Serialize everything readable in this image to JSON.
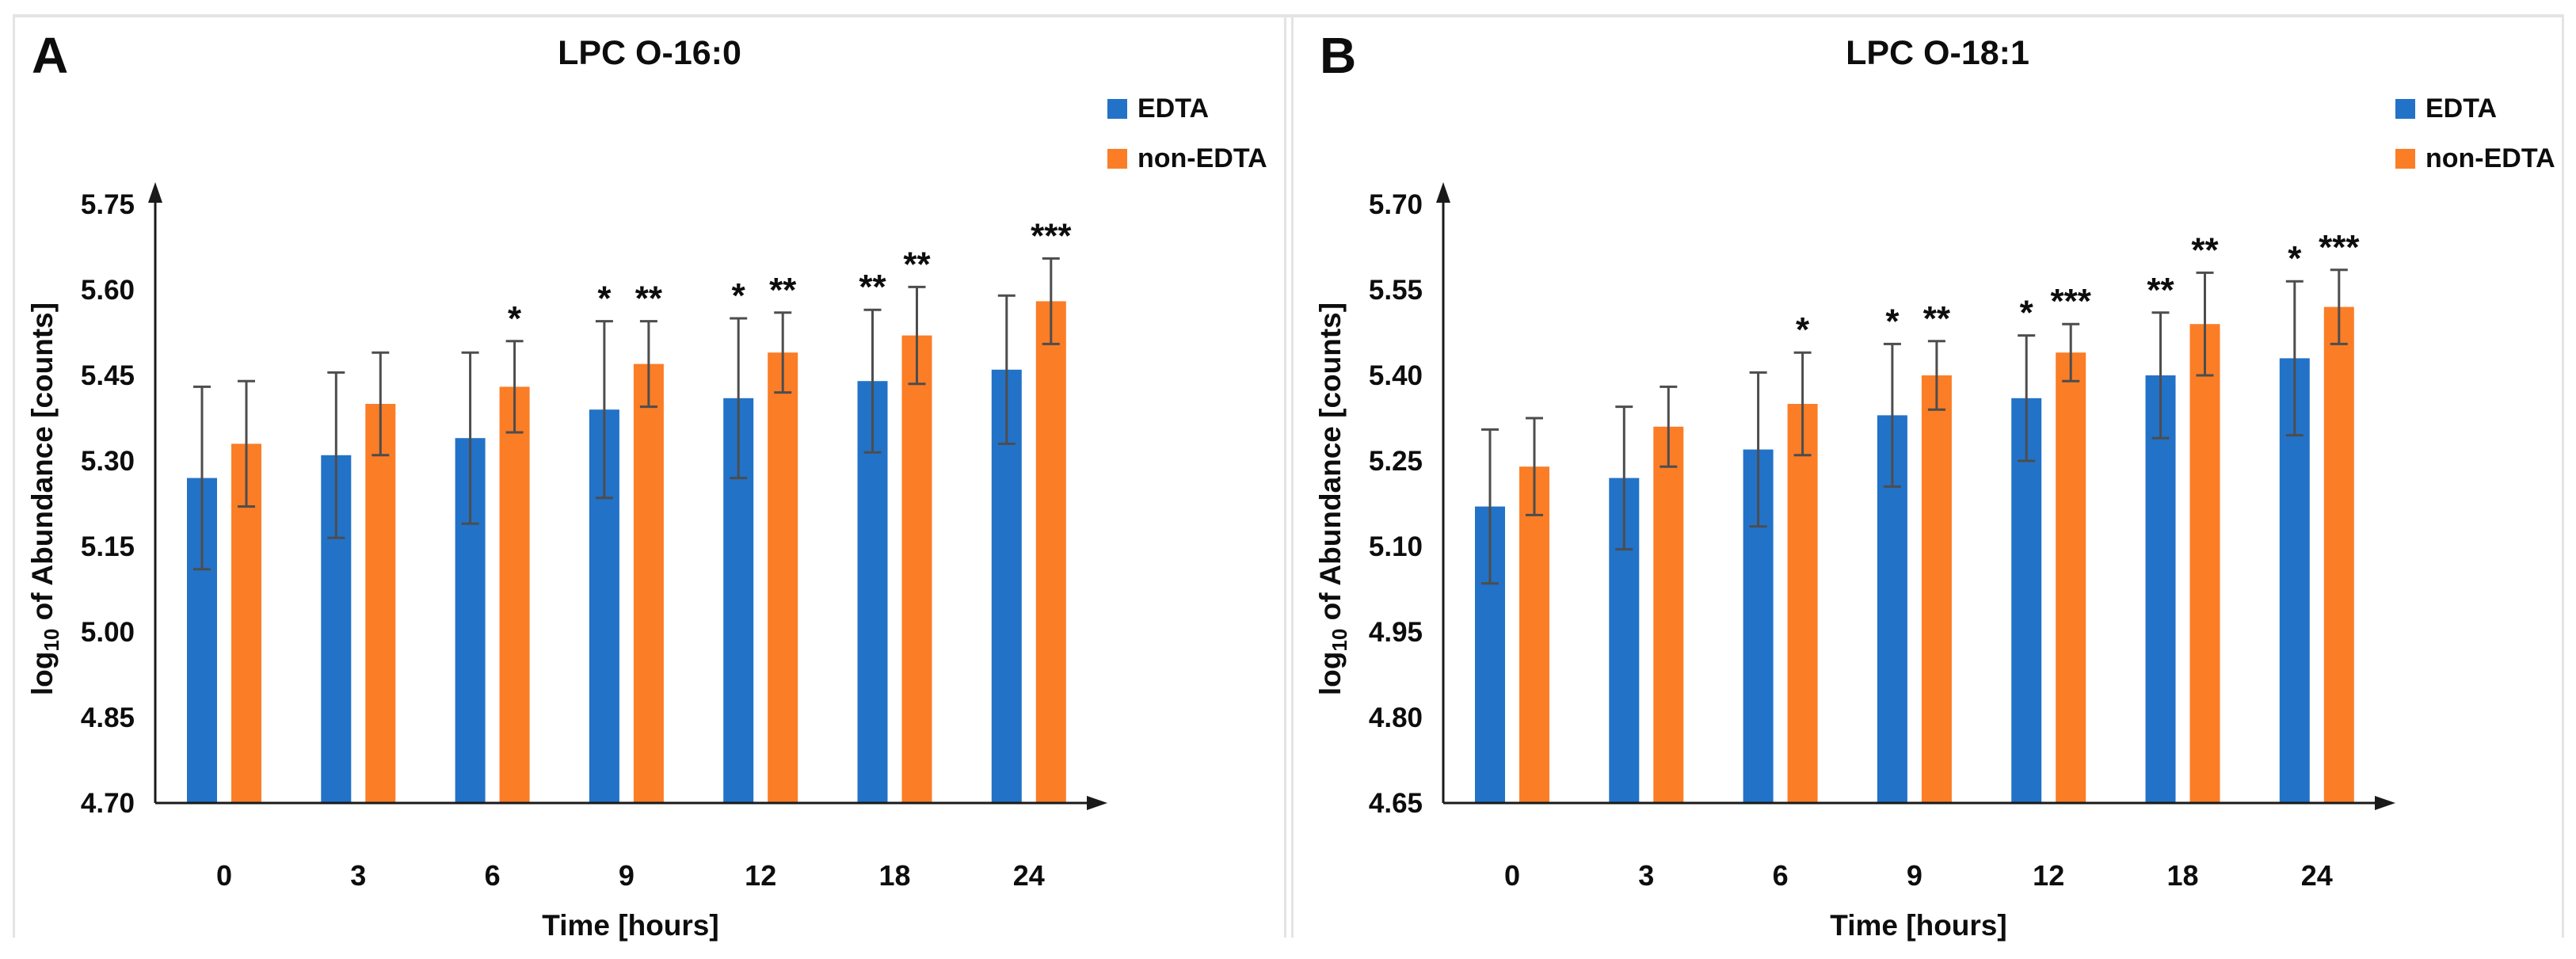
{
  "figure": {
    "background": "#ffffff",
    "frame_color": "#e4e4e4",
    "accent_blue": "#2272C8",
    "accent_orange": "#FB7D26"
  },
  "chart_data": [
    {
      "type": "bar",
      "panel_label": "A",
      "title": "LPC O-16:0",
      "xlabel": "Time [hours]",
      "ylabel": "log10 of Abundance [counts]",
      "ylabel_parts": {
        "pre": "log",
        "sub": "10",
        "post": " of Abundance [counts]"
      },
      "categories": [
        "0",
        "3",
        "6",
        "9",
        "12",
        "18",
        "24"
      ],
      "ylim": [
        4.7,
        5.75
      ],
      "yticks": [
        "4.70",
        "4.85",
        "5.00",
        "5.15",
        "5.30",
        "5.45",
        "5.60",
        "5.75"
      ],
      "grid": false,
      "legend": [
        "EDTA",
        "non-EDTA"
      ],
      "legend_position": "top-right",
      "error_bars": true,
      "series": [
        {
          "name": "EDTA",
          "color": "#2272C8",
          "values": [
            5.27,
            5.31,
            5.34,
            5.39,
            5.41,
            5.44,
            5.46
          ],
          "errors": [
            0.16,
            0.145,
            0.15,
            0.155,
            0.14,
            0.125,
            0.13
          ],
          "significance": [
            "",
            "",
            "",
            "*",
            "*",
            "**",
            ""
          ]
        },
        {
          "name": "non-EDTA",
          "color": "#FB7D26",
          "values": [
            5.33,
            5.4,
            5.43,
            5.47,
            5.49,
            5.52,
            5.58
          ],
          "errors": [
            0.11,
            0.09,
            0.08,
            0.075,
            0.07,
            0.085,
            0.075
          ],
          "significance": [
            "",
            "",
            "*",
            "**",
            "**",
            "**",
            "***"
          ]
        }
      ]
    },
    {
      "type": "bar",
      "panel_label": "B",
      "title": "LPC O-18:1",
      "xlabel": "Time [hours]",
      "ylabel": "log10 of Abundance [counts]",
      "ylabel_parts": {
        "pre": "log",
        "sub": "10",
        "post": " of Abundance [counts]"
      },
      "categories": [
        "0",
        "3",
        "6",
        "9",
        "12",
        "18",
        "24"
      ],
      "ylim": [
        4.65,
        5.7
      ],
      "yticks": [
        "4.65",
        "4.80",
        "4.95",
        "5.10",
        "5.25",
        "5.40",
        "5.55",
        "5.70"
      ],
      "grid": false,
      "legend": [
        "EDTA",
        "non-EDTA"
      ],
      "legend_position": "top-right",
      "error_bars": true,
      "series": [
        {
          "name": "EDTA",
          "color": "#2272C8",
          "values": [
            5.17,
            5.22,
            5.27,
            5.33,
            5.36,
            5.4,
            5.43
          ],
          "errors": [
            0.135,
            0.125,
            0.135,
            0.125,
            0.11,
            0.11,
            0.135
          ],
          "significance": [
            "",
            "",
            "",
            "*",
            "*",
            "**",
            "*"
          ]
        },
        {
          "name": "non-EDTA",
          "color": "#FB7D26",
          "values": [
            5.24,
            5.31,
            5.35,
            5.4,
            5.44,
            5.49,
            5.52
          ],
          "errors": [
            0.085,
            0.07,
            0.09,
            0.06,
            0.05,
            0.09,
            0.065
          ],
          "significance": [
            "",
            "",
            "*",
            "**",
            "***",
            "**",
            "***"
          ]
        }
      ]
    }
  ]
}
